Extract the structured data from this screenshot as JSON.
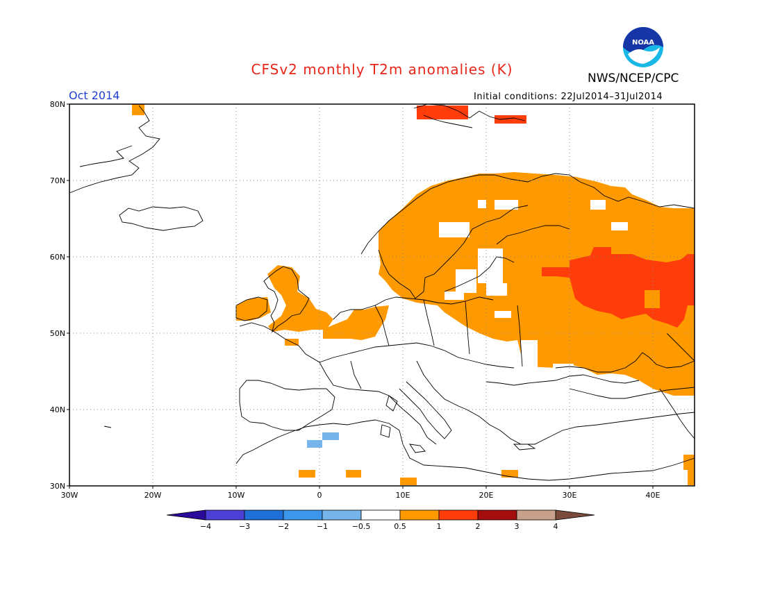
{
  "header": {
    "title": "CFSv2 monthly T2m anomalies (K)",
    "agency": "NWS/NCEP/CPC",
    "month_label": "Oct 2014",
    "initial_conditions": "Initial conditions: 22Jul2014–31Jul2014",
    "logo_text": "NOAA"
  },
  "colors": {
    "title": "#e8261a",
    "month": "#1f3fd6",
    "anomaly_warm": "#ff9900",
    "anomaly_hot": "#ff3d0a",
    "anomaly_cool": "#76b5ec"
  },
  "map": {
    "projection": "equirectangular",
    "lon_range": [
      -30,
      45
    ],
    "lat_range": [
      30,
      80
    ],
    "grid": "dotted every 10 degrees",
    "lon_ticks": [
      "30W",
      "20W",
      "10W",
      "0",
      "10E",
      "20E",
      "30E",
      "40E"
    ],
    "lat_ticks": [
      "80N",
      "70N",
      "60N",
      "50N",
      "40N",
      "30N"
    ]
  },
  "colorbar": {
    "labels": [
      "−4",
      "−3",
      "−2",
      "−1",
      "−0.5",
      "0.5",
      "1",
      "2",
      "3",
      "4"
    ],
    "colors": [
      "#2a0a9a",
      "#4b3fd6",
      "#1f6fd9",
      "#3c97ea",
      "#76b5ec",
      "#ffffff",
      "#ff9900",
      "#ff3d0a",
      "#a30d0d",
      "#c8a08c",
      "#7a4a3a"
    ]
  }
}
